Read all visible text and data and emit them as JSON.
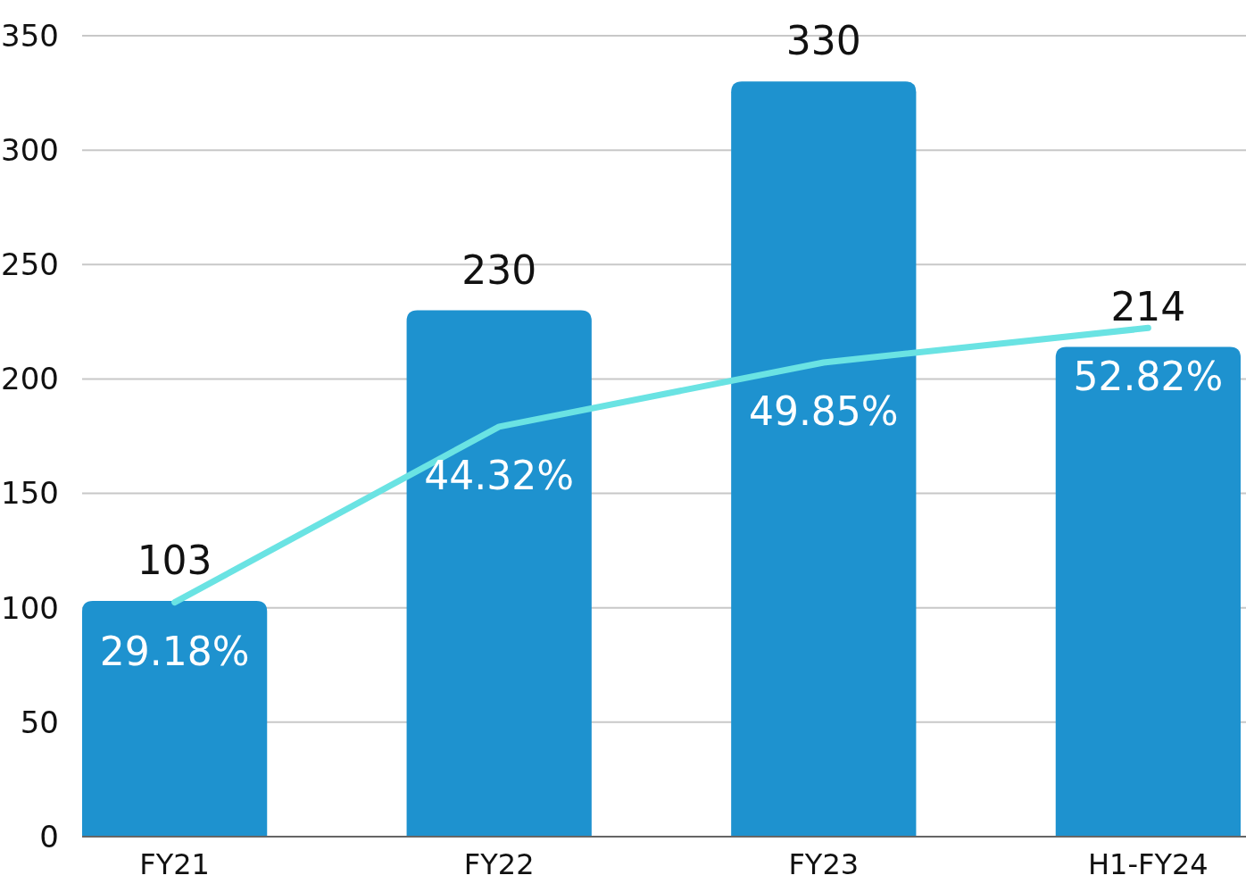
{
  "chart_data": {
    "type": "bar",
    "categories": [
      "FY21",
      "FY22",
      "FY23",
      "H1-FY24"
    ],
    "series": [
      {
        "color": "#1e92cf",
        "values": [
          103,
          230,
          330,
          214
        ],
        "value_labels": [
          "103",
          "230",
          "330",
          "214"
        ]
      },
      {
        "type": "line",
        "axis": "y2",
        "color": "#6ae3e3",
        "values": [
          29.18,
          44.32,
          49.85,
          52.82
        ],
        "value_labels": [
          "29.18%",
          "44.32%",
          "49.85%",
          "52.82%"
        ]
      }
    ],
    "ylim": [
      0,
      350
    ],
    "yticks": [
      0,
      50,
      100,
      150,
      200,
      250,
      300,
      350
    ],
    "y2lim": [
      9,
      78
    ],
    "grid": "y"
  }
}
